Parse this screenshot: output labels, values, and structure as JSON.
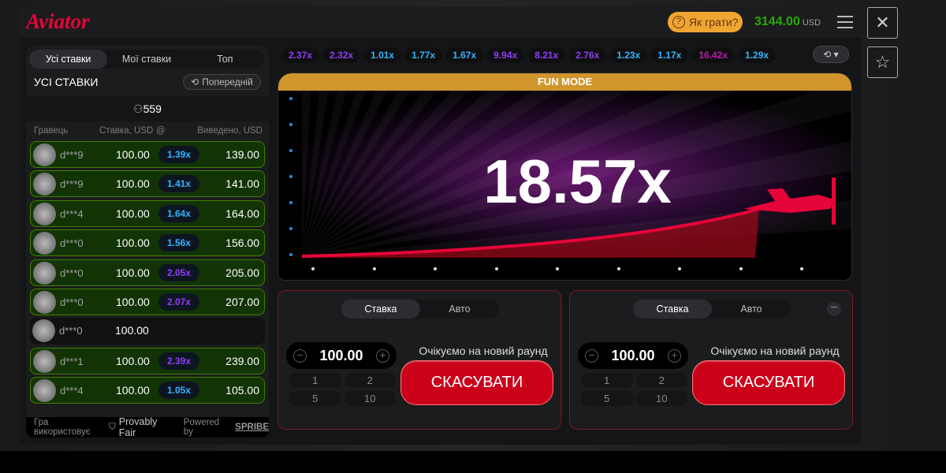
{
  "header": {
    "logo": "Aviator",
    "how_to_play": "Як грати?",
    "balance": "3144.00",
    "currency": "USD"
  },
  "bets_panel": {
    "tabs": [
      {
        "label": "Усі ставки",
        "active": true
      },
      {
        "label": "Мої ставки",
        "active": false
      },
      {
        "label": "Топ",
        "active": false
      }
    ],
    "title": "УСІ СТАВКИ",
    "previous_label": "Попередній",
    "players_count": "559",
    "columns": [
      "Гравець",
      "Ставка, USD",
      "@",
      "Виведено, USD"
    ],
    "rows": [
      {
        "player": "d***9",
        "bet": "100.00",
        "mult": "1.39x",
        "mult_color": "#34b4ff",
        "out": "139.00",
        "win": true
      },
      {
        "player": "d***9",
        "bet": "100.00",
        "mult": "1.41x",
        "mult_color": "#34b4ff",
        "out": "141.00",
        "win": true
      },
      {
        "player": "d***4",
        "bet": "100.00",
        "mult": "1.64x",
        "mult_color": "#34b4ff",
        "out": "164.00",
        "win": true
      },
      {
        "player": "d***0",
        "bet": "100.00",
        "mult": "1.56x",
        "mult_color": "#34b4ff",
        "out": "156.00",
        "win": true
      },
      {
        "player": "d***0",
        "bet": "100.00",
        "mult": "2.05x",
        "mult_color": "#913ef8",
        "out": "205.00",
        "win": true
      },
      {
        "player": "d***0",
        "bet": "100.00",
        "mult": "2.07x",
        "mult_color": "#913ef8",
        "out": "207.00",
        "win": true
      },
      {
        "player": "d***0",
        "bet": "100.00",
        "mult": "",
        "mult_color": "",
        "out": "",
        "win": false
      },
      {
        "player": "d***1",
        "bet": "100.00",
        "mult": "2.39x",
        "mult_color": "#913ef8",
        "out": "239.00",
        "win": true
      },
      {
        "player": "d***4",
        "bet": "100.00",
        "mult": "1.05x",
        "mult_color": "#34b4ff",
        "out": "105.00",
        "win": true
      }
    ],
    "footer": {
      "uses": "Гра використовує",
      "provably_fair": "Provably Fair",
      "powered_by": "Powered by",
      "brand": "SPRIBE"
    }
  },
  "history": [
    {
      "v": "2.37x",
      "c": "#913ef8"
    },
    {
      "v": "2.32x",
      "c": "#913ef8"
    },
    {
      "v": "1.01x",
      "c": "#34b4ff"
    },
    {
      "v": "1.77x",
      "c": "#34b4ff"
    },
    {
      "v": "1.67x",
      "c": "#34b4ff"
    },
    {
      "v": "9.94x",
      "c": "#913ef8"
    },
    {
      "v": "8.21x",
      "c": "#913ef8"
    },
    {
      "v": "2.76x",
      "c": "#913ef8"
    },
    {
      "v": "1.23x",
      "c": "#34b4ff"
    },
    {
      "v": "1.17x",
      "c": "#34b4ff"
    },
    {
      "v": "16.42x",
      "c": "#c017b4"
    },
    {
      "v": "1.29x",
      "c": "#34b4ff"
    }
  ],
  "game": {
    "mode_banner": "FUN MODE",
    "multiplier": "18.57x"
  },
  "bet_panels": [
    {
      "tabs": [
        "Ставка",
        "Авто"
      ],
      "amount": "100.00",
      "quick": [
        "1",
        "2",
        "5",
        "10"
      ],
      "status": "Очікуємо на новий раунд",
      "cancel": "СКАСУВАТИ"
    },
    {
      "tabs": [
        "Ставка",
        "Авто"
      ],
      "amount": "100.00",
      "quick": [
        "1",
        "2",
        "5",
        "10"
      ],
      "status": "Очікуємо на новий раунд",
      "cancel": "СКАСУВАТИ"
    }
  ],
  "colors": {
    "accent": "#e50539",
    "win_row": "#123405",
    "cancel": "#cb011a",
    "banner": "#d0952d"
  }
}
